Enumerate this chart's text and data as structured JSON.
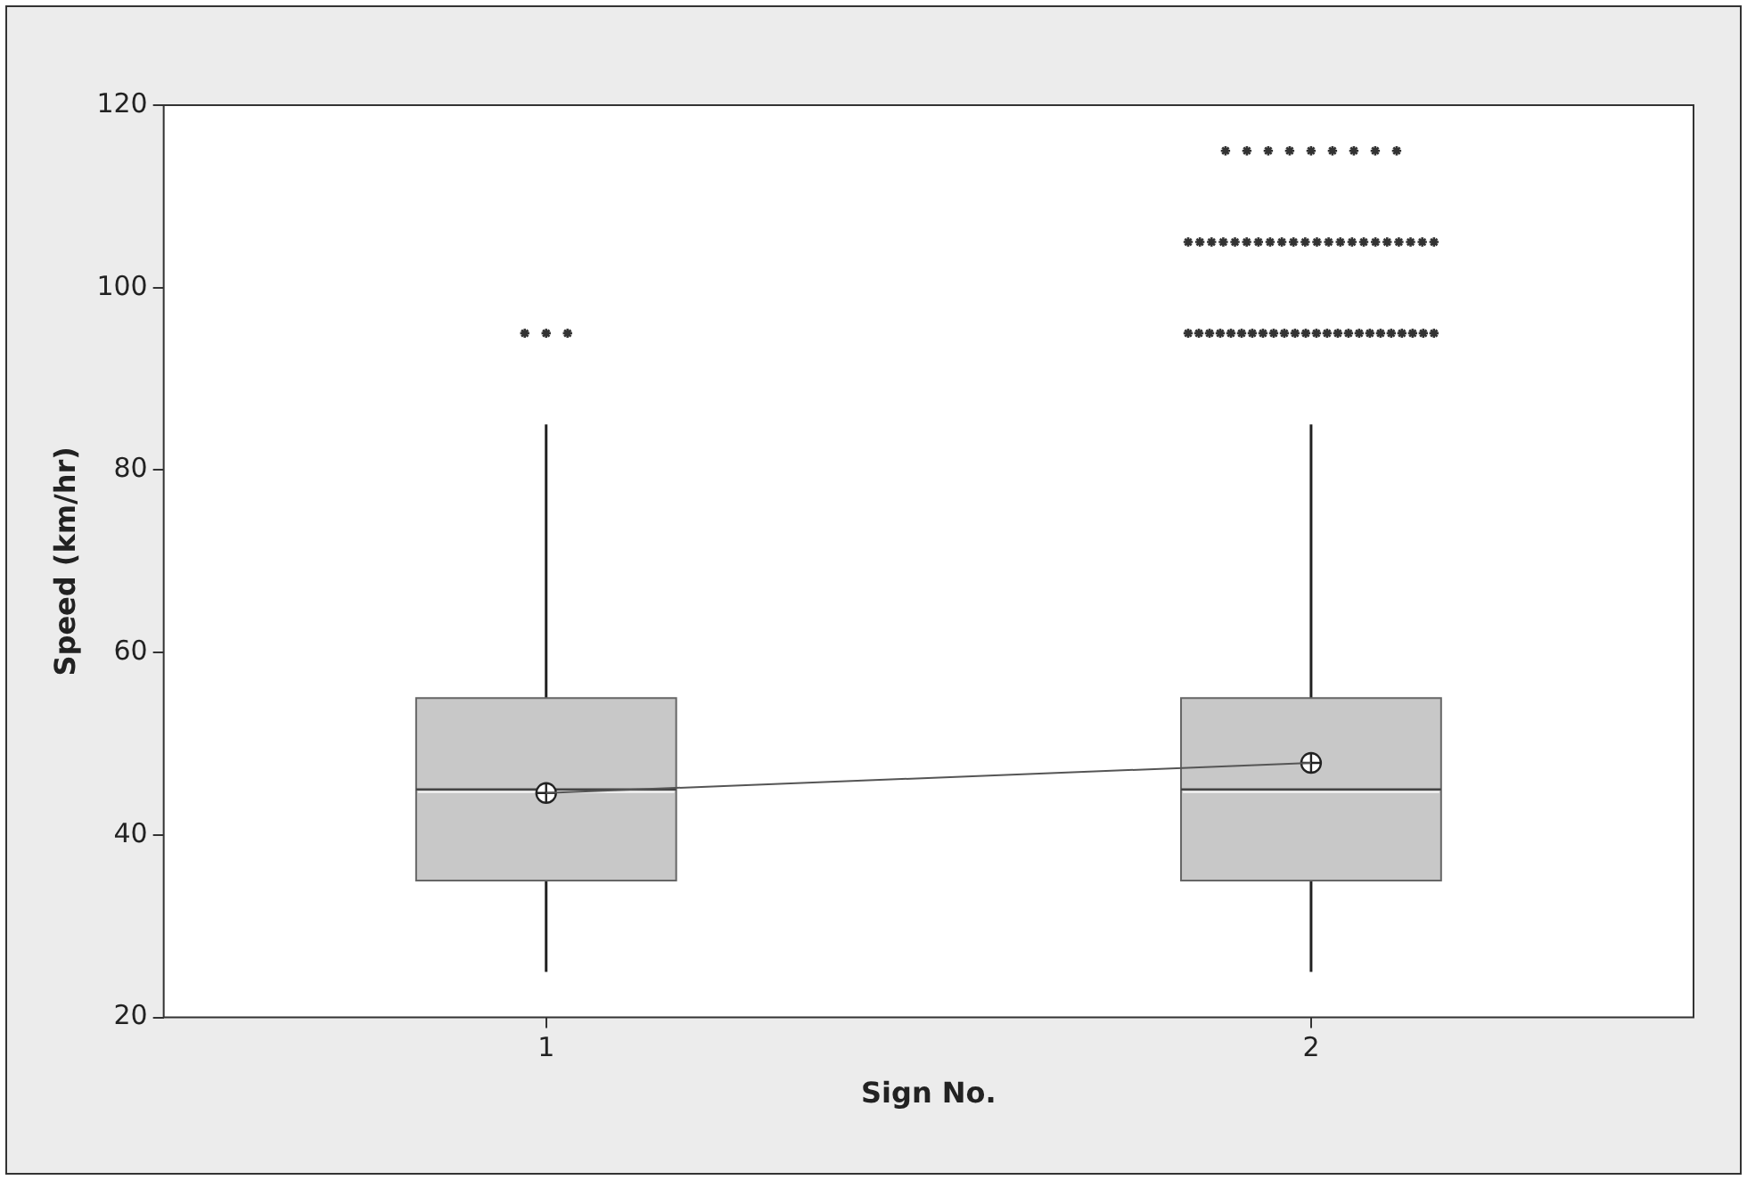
{
  "chart_data": {
    "type": "box",
    "xlabel": "Sign No.",
    "ylabel": "Speed (km/hr)",
    "categories": [
      "1",
      "2"
    ],
    "ylim": [
      20,
      120
    ],
    "yticks": [
      20,
      40,
      60,
      80,
      100,
      120
    ],
    "grid": false,
    "series": [
      {
        "color": "#c8c8c8",
        "boxes": [
          {
            "low": 25,
            "q1": 35,
            "median": 45,
            "q3": 55,
            "high": 85,
            "mean": 44.6,
            "outliers": [
              95,
              95,
              95
            ]
          },
          {
            "low": 25,
            "q1": 35,
            "median": 45,
            "q3": 55,
            "high": 85,
            "mean": 47.9,
            "outliers": [
              95,
              95,
              95,
              95,
              95,
              95,
              95,
              95,
              95,
              95,
              95,
              95,
              95,
              95,
              95,
              95,
              95,
              95,
              95,
              95,
              95,
              95,
              95,
              95,
              105,
              105,
              105,
              105,
              105,
              105,
              105,
              105,
              105,
              105,
              105,
              105,
              105,
              105,
              105,
              105,
              105,
              105,
              105,
              105,
              105,
              105,
              115,
              115,
              115,
              115,
              115,
              115,
              115,
              115,
              115
            ]
          }
        ]
      },
      {
        "type": "line",
        "color": "#555555",
        "values": [
          44.6,
          47.9
        ]
      }
    ]
  }
}
